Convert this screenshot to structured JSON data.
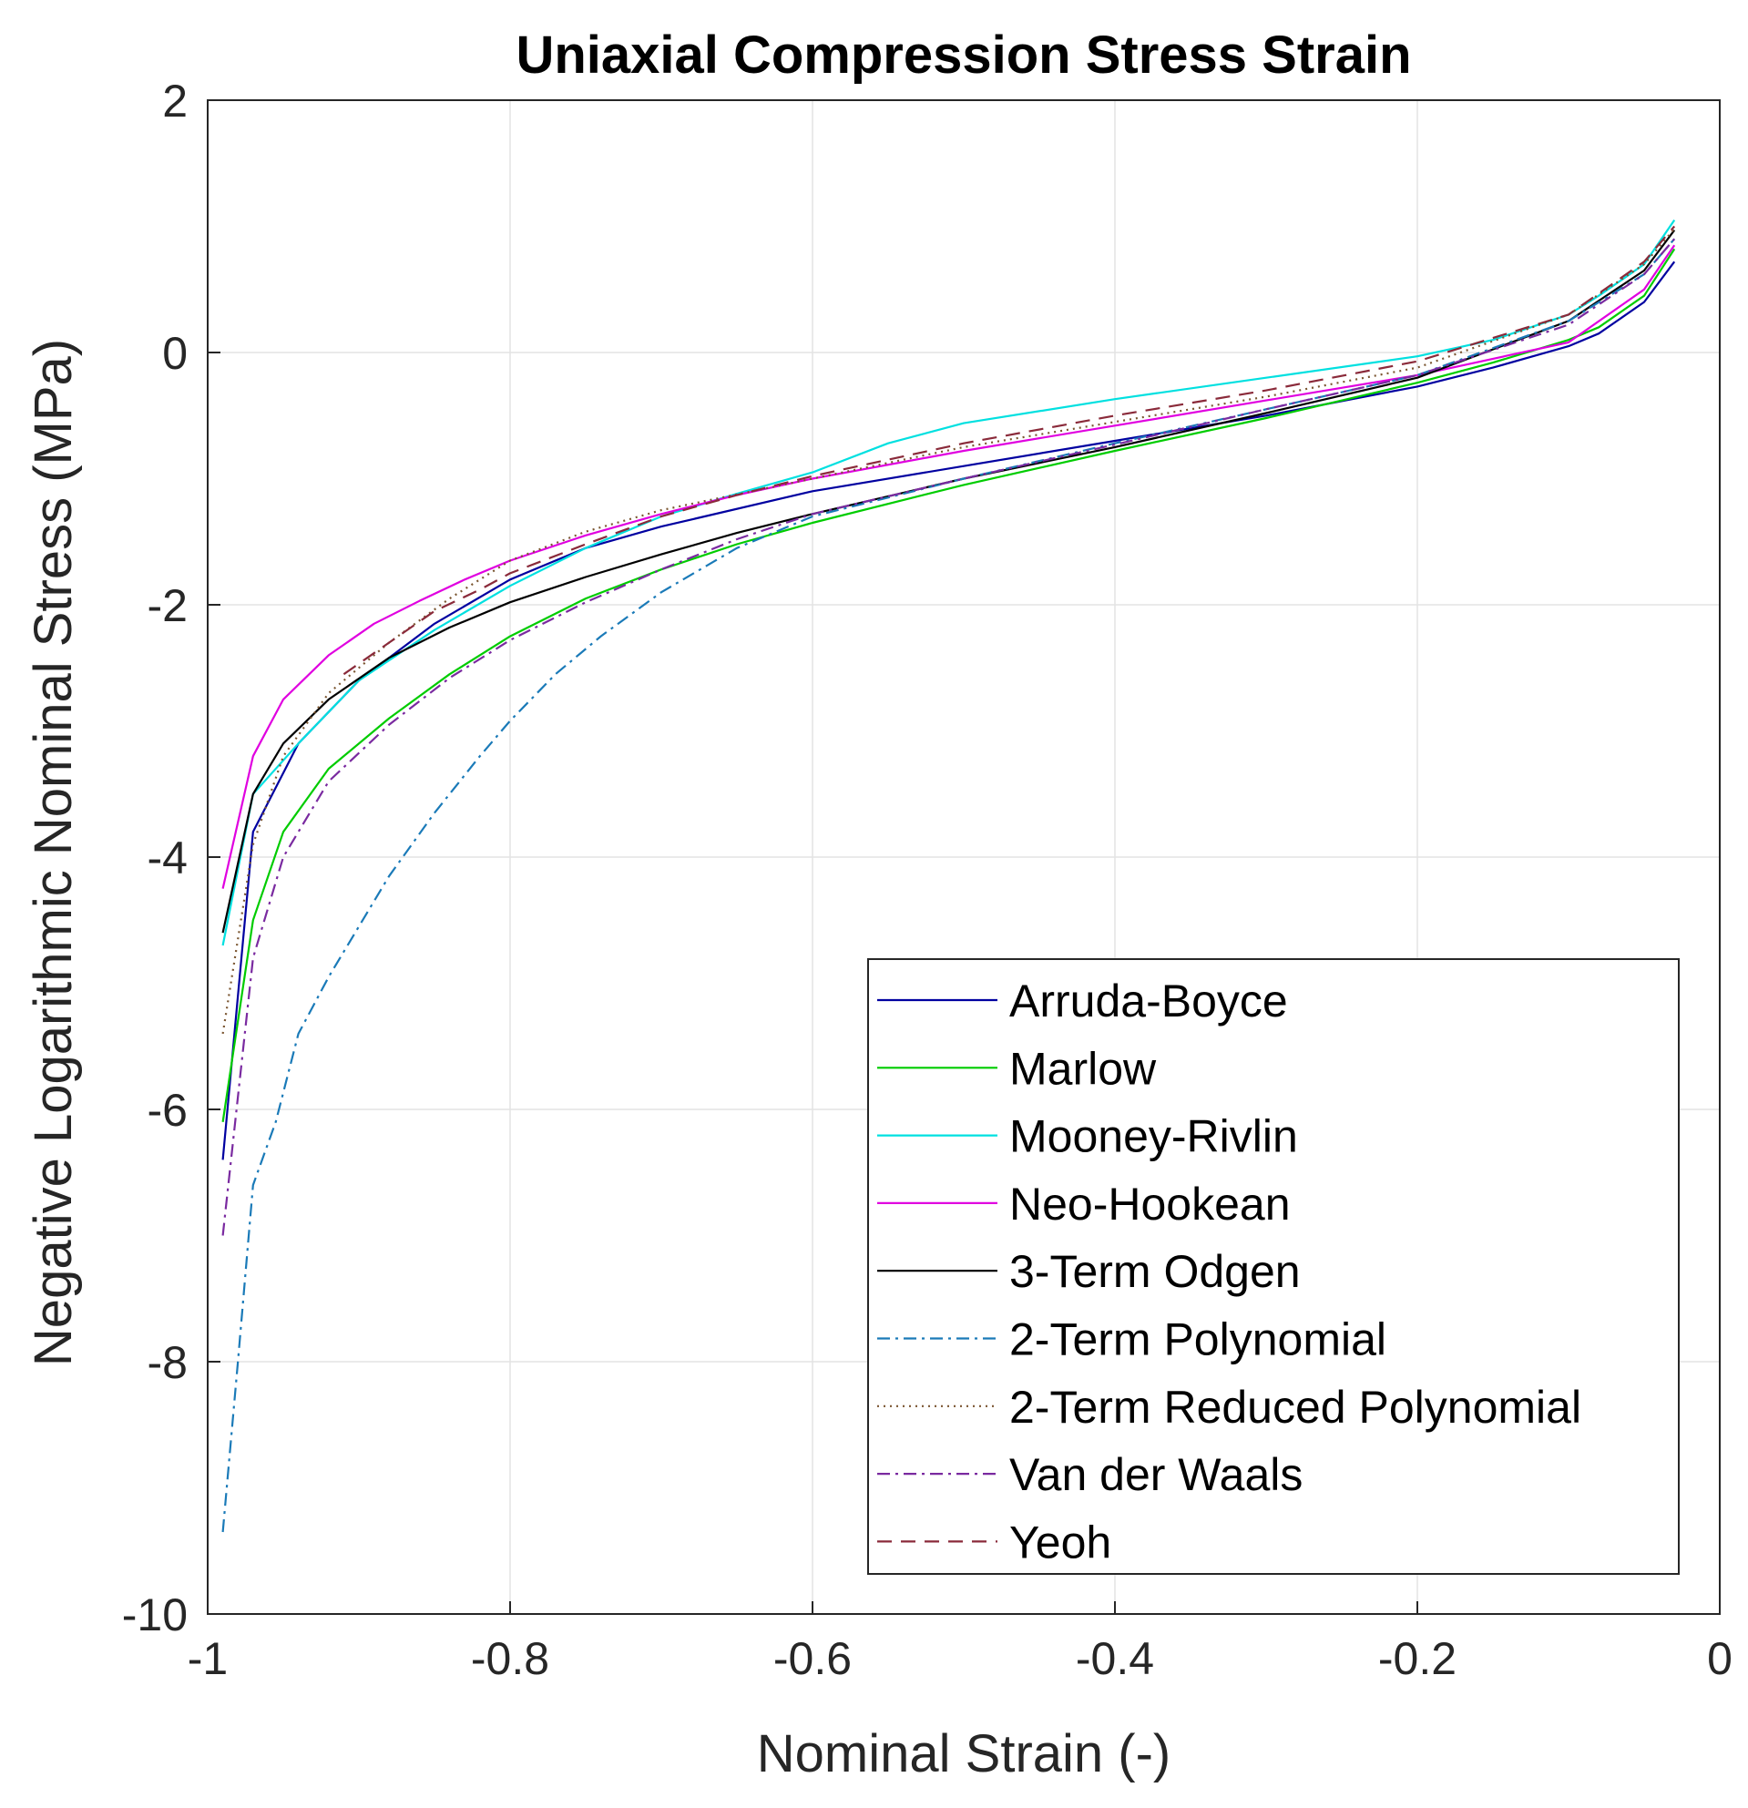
{
  "chart_data": {
    "type": "line",
    "title": "Uniaxial Compression Stress Strain",
    "xlabel": "Nominal Strain (-)",
    "ylabel": "Negative Logarithmic Nominal Stress (MPa)",
    "xlim": [
      -1,
      0
    ],
    "ylim": [
      -10,
      2
    ],
    "xticks": [
      -1,
      -0.8,
      -0.6,
      -0.4,
      -0.2,
      0
    ],
    "xtick_labels": [
      "-1",
      "-0.8",
      "-0.6",
      "-0.4",
      "-0.2",
      "0"
    ],
    "yticks": [
      -10,
      -8,
      -6,
      -4,
      -2,
      0,
      2
    ],
    "ytick_labels": [
      "-10",
      "-8",
      "-6",
      "-4",
      "-2",
      "0",
      "2"
    ],
    "grid": true,
    "legend_position": "bottom-right",
    "series": [
      {
        "name": "Arruda-Boyce",
        "color": "#0000a0",
        "dash": "solid",
        "x": [
          -0.99,
          -0.97,
          -0.94,
          -0.9,
          -0.85,
          -0.8,
          -0.75,
          -0.7,
          -0.6,
          -0.5,
          -0.4,
          -0.3,
          -0.2,
          -0.15,
          -0.1,
          -0.08,
          -0.05,
          -0.03
        ],
        "y": [
          -6.4,
          -3.8,
          -3.1,
          -2.6,
          -2.15,
          -1.8,
          -1.55,
          -1.38,
          -1.1,
          -0.9,
          -0.7,
          -0.5,
          -0.27,
          -0.12,
          0.05,
          0.15,
          0.4,
          0.72
        ]
      },
      {
        "name": "Marlow",
        "color": "#00cc00",
        "dash": "solid",
        "x": [
          -0.99,
          -0.97,
          -0.95,
          -0.92,
          -0.88,
          -0.84,
          -0.8,
          -0.75,
          -0.7,
          -0.65,
          -0.6,
          -0.5,
          -0.4,
          -0.3,
          -0.2,
          -0.15,
          -0.1,
          -0.08,
          -0.05,
          -0.03
        ],
        "y": [
          -6.1,
          -4.5,
          -3.8,
          -3.3,
          -2.9,
          -2.55,
          -2.25,
          -1.95,
          -1.72,
          -1.52,
          -1.35,
          -1.05,
          -0.78,
          -0.52,
          -0.24,
          -0.08,
          0.1,
          0.2,
          0.45,
          0.82
        ]
      },
      {
        "name": "Mooney-Rivlin",
        "color": "#00e0e0",
        "dash": "solid",
        "x": [
          -0.99,
          -0.97,
          -0.94,
          -0.9,
          -0.85,
          -0.8,
          -0.75,
          -0.7,
          -0.65,
          -0.6,
          -0.55,
          -0.5,
          -0.4,
          -0.3,
          -0.2,
          -0.15,
          -0.1,
          -0.08,
          -0.05,
          -0.03
        ],
        "y": [
          -4.7,
          -3.5,
          -3.1,
          -2.6,
          -2.2,
          -1.85,
          -1.55,
          -1.3,
          -1.12,
          -0.95,
          -0.72,
          -0.56,
          -0.37,
          -0.2,
          -0.03,
          0.1,
          0.3,
          0.45,
          0.7,
          1.05
        ]
      },
      {
        "name": "Neo-Hookean",
        "color": "#e000e0",
        "dash": "solid",
        "x": [
          -0.99,
          -0.97,
          -0.95,
          -0.92,
          -0.89,
          -0.86,
          -0.83,
          -0.8,
          -0.75,
          -0.7,
          -0.65,
          -0.6,
          -0.5,
          -0.4,
          -0.3,
          -0.2,
          -0.1,
          -0.05,
          -0.03
        ],
        "y": [
          -4.25,
          -3.2,
          -2.75,
          -2.4,
          -2.15,
          -1.97,
          -1.8,
          -1.65,
          -1.45,
          -1.28,
          -1.13,
          -1.0,
          -0.78,
          -0.58,
          -0.38,
          -0.18,
          0.08,
          0.5,
          0.85
        ]
      },
      {
        "name": "3-Term Odgen",
        "color": "#000000",
        "dash": "solid",
        "x": [
          -0.99,
          -0.97,
          -0.95,
          -0.92,
          -0.88,
          -0.84,
          -0.8,
          -0.75,
          -0.7,
          -0.65,
          -0.6,
          -0.5,
          -0.4,
          -0.3,
          -0.2,
          -0.1,
          -0.05,
          -0.03
        ],
        "y": [
          -4.6,
          -3.5,
          -3.1,
          -2.75,
          -2.42,
          -2.18,
          -1.98,
          -1.78,
          -1.6,
          -1.43,
          -1.28,
          -1.0,
          -0.75,
          -0.48,
          -0.2,
          0.25,
          0.65,
          0.97
        ]
      },
      {
        "name": "2-Term Polynomial",
        "color": "#1a7ab8",
        "dash": "dashdot",
        "x": [
          -0.99,
          -0.98,
          -0.97,
          -0.955,
          -0.94,
          -0.92,
          -0.9,
          -0.88,
          -0.85,
          -0.82,
          -0.8,
          -0.77,
          -0.74,
          -0.7,
          -0.65,
          -0.6,
          -0.5,
          -0.4,
          -0.3,
          -0.2,
          -0.1,
          -0.05,
          -0.03
        ],
        "y": [
          -9.35,
          -8.0,
          -6.6,
          -6.1,
          -5.4,
          -4.95,
          -4.55,
          -4.15,
          -3.65,
          -3.2,
          -2.92,
          -2.55,
          -2.25,
          -1.9,
          -1.55,
          -1.3,
          -1.0,
          -0.72,
          -0.45,
          -0.18,
          0.25,
          0.62,
          0.9
        ]
      },
      {
        "name": "2-Term Reduced Polynomial",
        "color": "#7a5530",
        "dash": "dotted",
        "x": [
          -0.99,
          -0.97,
          -0.95,
          -0.92,
          -0.88,
          -0.84,
          -0.8,
          -0.75,
          -0.7,
          -0.6,
          -0.5,
          -0.4,
          -0.3,
          -0.2,
          -0.1,
          -0.05,
          -0.03
        ],
        "y": [
          -5.4,
          -3.9,
          -3.2,
          -2.7,
          -2.3,
          -1.95,
          -1.65,
          -1.42,
          -1.25,
          -1.0,
          -0.75,
          -0.55,
          -0.35,
          -0.12,
          0.3,
          0.7,
          0.98
        ]
      },
      {
        "name": "Van der Waals",
        "color": "#7a2aa0",
        "dash": "dashdot",
        "x": [
          -0.99,
          -0.97,
          -0.95,
          -0.92,
          -0.88,
          -0.84,
          -0.8,
          -0.75,
          -0.7,
          -0.65,
          -0.6,
          -0.5,
          -0.4,
          -0.3,
          -0.2,
          -0.1,
          -0.05,
          -0.03
        ],
        "y": [
          -7.0,
          -4.8,
          -4.0,
          -3.4,
          -2.95,
          -2.58,
          -2.28,
          -1.98,
          -1.72,
          -1.48,
          -1.28,
          -1.0,
          -0.73,
          -0.45,
          -0.18,
          0.22,
          0.62,
          0.9
        ]
      },
      {
        "name": "Yeoh",
        "color": "#8a2a3a",
        "dash": "dashed",
        "x": [
          -0.91,
          -0.88,
          -0.85,
          -0.82,
          -0.8,
          -0.75,
          -0.7,
          -0.65,
          -0.6,
          -0.5,
          -0.4,
          -0.3,
          -0.2,
          -0.1,
          -0.05,
          -0.03
        ],
        "y": [
          -2.55,
          -2.3,
          -2.05,
          -1.88,
          -1.75,
          -1.52,
          -1.3,
          -1.13,
          -0.98,
          -0.72,
          -0.5,
          -0.3,
          -0.07,
          0.3,
          0.72,
          1.0
        ]
      }
    ]
  }
}
